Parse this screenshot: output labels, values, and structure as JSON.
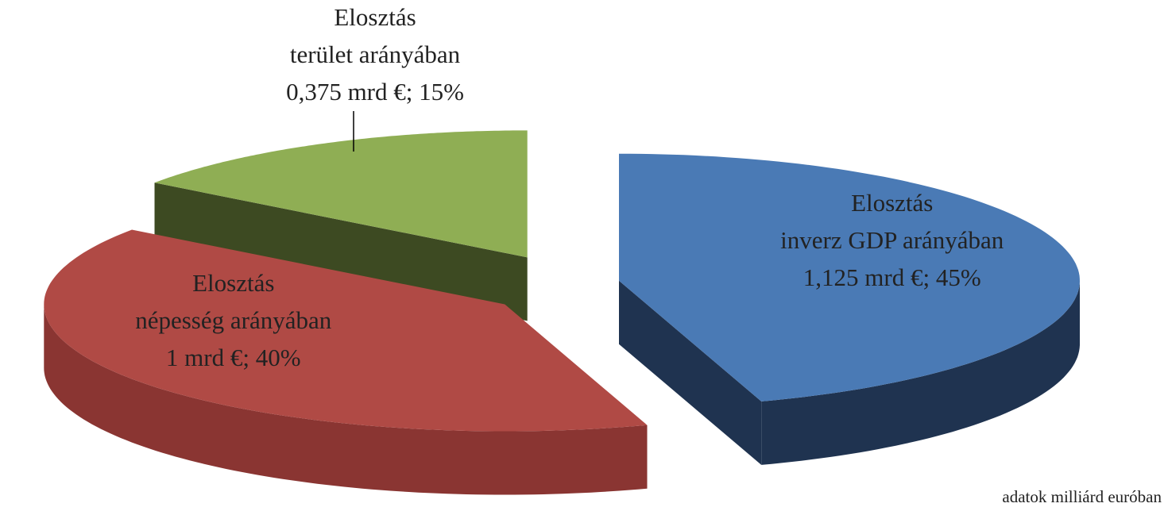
{
  "chart_data": {
    "type": "pie3d",
    "categories": [
      [
        "Elosztás",
        "inverz GDP arányában"
      ],
      [
        "Elosztás",
        "népesség arányában"
      ],
      [
        "Elosztás",
        "terület arányában"
      ]
    ],
    "values": [
      45,
      40,
      15
    ],
    "value_labels": [
      "1,125 mrd €; 45%",
      "1 mrd €; 40%",
      "0,375 mrd €; 15%"
    ],
    "colors": [
      "#4a7ab5",
      "#b04a45",
      "#8fae54"
    ],
    "side_colors": [
      "#1f3350",
      "#8a3532",
      "#3d4a22"
    ],
    "note": "adatok milliárd euróban"
  }
}
